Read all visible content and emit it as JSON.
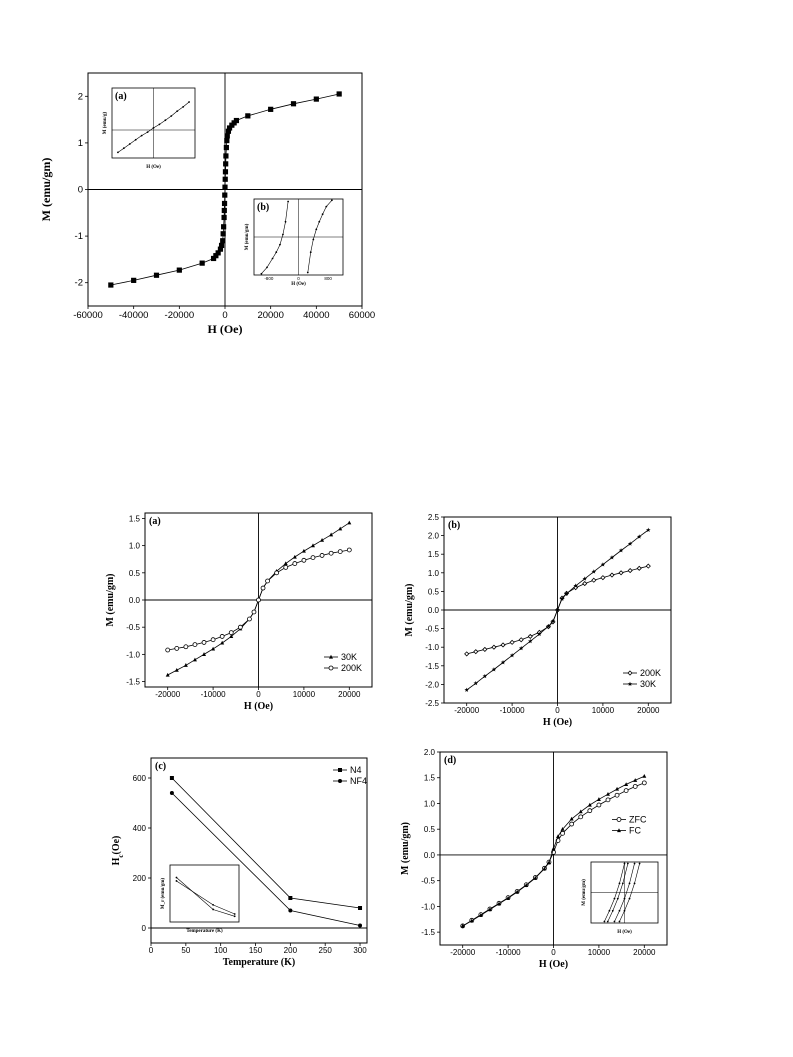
{
  "chart_data": [
    {
      "id": "top",
      "type": "line",
      "xlabel": "H (Oe)",
      "ylabel": "M (emu/gm)",
      "xlim": [
        -60000,
        60000
      ],
      "ylim": [
        -2.5,
        2.5
      ],
      "xticks": [
        -60000,
        -40000,
        -20000,
        0,
        20000,
        40000,
        60000
      ],
      "yticks": [
        -2,
        -1,
        0,
        1,
        2
      ],
      "xtick_labels": [
        "-60000",
        "-40000",
        "-20000",
        "0",
        "20000",
        "40000",
        "60000"
      ],
      "ytick_labels": [
        "-2",
        "-1",
        "0",
        "1",
        "2"
      ],
      "series": [
        {
          "marker": "square",
          "x": [
            -50000,
            -40000,
            -30000,
            -20000,
            -10000,
            -5000,
            -4000,
            -3000,
            -2000,
            -1500,
            -1000,
            -800,
            -600,
            -400,
            -300,
            -200,
            -100,
            0,
            100,
            200,
            300,
            400,
            600,
            800,
            1000,
            1500,
            2000,
            3000,
            4000,
            5000,
            10000,
            20000,
            30000,
            40000,
            50000
          ],
          "y": [
            -2.05,
            -1.95,
            -1.84,
            -1.73,
            -1.58,
            -1.48,
            -1.42,
            -1.36,
            -1.28,
            -1.2,
            -1.1,
            -0.95,
            -0.8,
            -0.6,
            -0.45,
            -0.3,
            -0.12,
            0.05,
            0.22,
            0.38,
            0.55,
            0.72,
            0.9,
            1.05,
            1.15,
            1.25,
            1.32,
            1.38,
            1.43,
            1.48,
            1.58,
            1.72,
            1.84,
            1.94,
            2.05
          ]
        }
      ],
      "insets": [
        {
          "id": "a",
          "label": "(a)",
          "xlabel": "H (Oe)",
          "ylabel": "M (emu/g)",
          "xlim": [
            -7000,
            7000
          ],
          "ylim": [
            -4,
            6
          ],
          "series": [
            {
              "x": [
                -6000,
                -5000,
                -4000,
                -3000,
                -2000,
                -1000,
                0,
                1000,
                2000,
                3000,
                4000,
                5000,
                6000
              ],
              "y": [
                -3.2,
                -2.6,
                -2.0,
                -1.4,
                -0.8,
                -0.3,
                0.3,
                0.8,
                1.4,
                2.0,
                2.7,
                3.3,
                4.0
              ]
            }
          ]
        },
        {
          "id": "b",
          "label": "(b)",
          "xlabel": "H (Oe)",
          "ylabel": "M (emu/gm)",
          "xtick_labels": [
            "-800",
            "0",
            "800"
          ],
          "xlim": [
            -1200,
            1200
          ],
          "ylim": [
            -1.5,
            1.5
          ],
          "series": [
            {
              "x": [
                -1000,
                -850,
                -700,
                -600,
                -500,
                -420,
                -350,
                -280
              ],
              "y": [
                -1.45,
                -1.2,
                -0.85,
                -0.6,
                -0.3,
                0.1,
                0.6,
                1.4
              ]
            },
            {
              "x": [
                250,
                330,
                400,
                480,
                560,
                650,
                750,
                900
              ],
              "y": [
                -1.4,
                -0.6,
                -0.1,
                0.3,
                0.6,
                0.9,
                1.2,
                1.45
              ]
            }
          ]
        }
      ]
    },
    {
      "id": "a",
      "type": "line",
      "panel_label": "(a)",
      "xlabel": "H (Oe)",
      "ylabel": "M (emu/gm)",
      "xlim": [
        -25000,
        25000
      ],
      "ylim": [
        -1.6,
        1.6
      ],
      "xticks": [
        -20000,
        -10000,
        0,
        10000,
        20000
      ],
      "yticks": [
        -1.5,
        -1.0,
        -0.5,
        0.0,
        0.5,
        1.0,
        1.5
      ],
      "xtick_labels": [
        "-20000",
        "-10000",
        "0",
        "10000",
        "20000"
      ],
      "ytick_labels": [
        "-1.5",
        "-1.0",
        "-0.5",
        "0.0",
        "0.5",
        "1.0",
        "1.5"
      ],
      "legend_position": "bottom-right",
      "series": [
        {
          "name": "30K",
          "marker": "filled-triangle",
          "x": [
            -20000,
            -18000,
            -16000,
            -14000,
            -12000,
            -10000,
            -8000,
            -6000,
            -4000,
            -2000,
            -1000,
            0,
            1000,
            2000,
            4000,
            6000,
            8000,
            10000,
            12000,
            14000,
            16000,
            18000,
            20000
          ],
          "y": [
            -1.38,
            -1.29,
            -1.2,
            -1.1,
            -1.0,
            -0.9,
            -0.79,
            -0.67,
            -0.53,
            -0.35,
            -0.22,
            0.0,
            0.22,
            0.35,
            0.53,
            0.67,
            0.79,
            0.9,
            1.0,
            1.1,
            1.2,
            1.31,
            1.42
          ]
        },
        {
          "name": "200K",
          "marker": "open-circle",
          "x": [
            -20000,
            -18000,
            -16000,
            -14000,
            -12000,
            -10000,
            -8000,
            -6000,
            -4000,
            -2000,
            -1000,
            0,
            1000,
            2000,
            4000,
            6000,
            8000,
            10000,
            12000,
            14000,
            16000,
            18000,
            20000
          ],
          "y": [
            -0.92,
            -0.89,
            -0.86,
            -0.82,
            -0.78,
            -0.73,
            -0.67,
            -0.6,
            -0.5,
            -0.35,
            -0.22,
            0.0,
            0.22,
            0.35,
            0.5,
            0.6,
            0.67,
            0.73,
            0.78,
            0.82,
            0.86,
            0.89,
            0.92
          ]
        }
      ]
    },
    {
      "id": "b",
      "type": "line",
      "panel_label": "(b)",
      "xlabel": "H (Oe)",
      "ylabel": "M (emu/gm)",
      "xlim": [
        -25000,
        25000
      ],
      "ylim": [
        -2.5,
        2.5
      ],
      "xticks": [
        -20000,
        -10000,
        0,
        10000,
        20000
      ],
      "yticks": [
        -2.5,
        -2.0,
        -1.5,
        -1.0,
        -0.5,
        0.0,
        0.5,
        1.0,
        1.5,
        2.0,
        2.5
      ],
      "xtick_labels": [
        "-20000",
        "-10000",
        "0",
        "10000",
        "20000"
      ],
      "ytick_labels": [
        "-2.5",
        "-2.0",
        "-1.5",
        "-1.0",
        "-0.5",
        "0.0",
        "0.5",
        "1.0",
        "1.5",
        "2.0",
        "2.5"
      ],
      "legend_position": "bottom-right",
      "series": [
        {
          "name": "200K",
          "marker": "open-diamond",
          "x": [
            -20000,
            -18000,
            -16000,
            -14000,
            -12000,
            -10000,
            -8000,
            -6000,
            -4000,
            -2000,
            -1000,
            0,
            1000,
            2000,
            4000,
            6000,
            8000,
            10000,
            12000,
            14000,
            16000,
            18000,
            20000
          ],
          "y": [
            -1.18,
            -1.12,
            -1.06,
            -1.0,
            -0.94,
            -0.87,
            -0.8,
            -0.71,
            -0.6,
            -0.45,
            -0.32,
            0.0,
            0.32,
            0.45,
            0.6,
            0.71,
            0.8,
            0.87,
            0.94,
            1.0,
            1.06,
            1.12,
            1.18
          ]
        },
        {
          "name": "30K",
          "marker": "filled-star",
          "x": [
            -20000,
            -18000,
            -16000,
            -14000,
            -12000,
            -10000,
            -8000,
            -6000,
            -4000,
            -2000,
            -1000,
            0,
            1000,
            2000,
            4000,
            6000,
            8000,
            10000,
            12000,
            14000,
            16000,
            18000,
            20000
          ],
          "y": [
            -2.15,
            -1.97,
            -1.78,
            -1.6,
            -1.41,
            -1.22,
            -1.03,
            -0.84,
            -0.65,
            -0.44,
            -0.3,
            0.0,
            0.3,
            0.44,
            0.65,
            0.84,
            1.03,
            1.22,
            1.41,
            1.6,
            1.78,
            1.97,
            2.15
          ]
        }
      ]
    },
    {
      "id": "c",
      "type": "line",
      "panel_label": "(c)",
      "xlabel": "Temperature (K)",
      "ylabel": "H_c (Oe)",
      "xlim": [
        0,
        310
      ],
      "ylim": [
        -60,
        680
      ],
      "xticks": [
        0,
        50,
        100,
        150,
        200,
        250,
        300
      ],
      "yticks": [
        0,
        200,
        400,
        600
      ],
      "xtick_labels": [
        "0",
        "50",
        "100",
        "150",
        "200",
        "250",
        "300"
      ],
      "ytick_labels": [
        "0",
        "200",
        "400",
        "600"
      ],
      "legend_position": "top-right",
      "series": [
        {
          "name": "N4",
          "marker": "filled-square",
          "x": [
            30,
            200,
            300
          ],
          "y": [
            600,
            120,
            80
          ]
        },
        {
          "name": "NF4",
          "marker": "filled-circle",
          "x": [
            30,
            200,
            300
          ],
          "y": [
            540,
            70,
            10
          ]
        }
      ],
      "insets": [
        {
          "id": "c-inset",
          "xlabel": "Temperature (K)",
          "ylabel": "M_r (emu/gm)",
          "xlim": [
            0,
            320
          ],
          "ylim": [
            0,
            1
          ],
          "series": [
            {
              "x": [
                30,
                200,
                300
              ],
              "y": [
                0.78,
                0.22,
                0.1
              ]
            },
            {
              "x": [
                30,
                200,
                300
              ],
              "y": [
                0.72,
                0.3,
                0.14
              ]
            }
          ]
        }
      ]
    },
    {
      "id": "d",
      "type": "line",
      "panel_label": "(d)",
      "xlabel": "H (Oe)",
      "ylabel": "M (emu/gm)",
      "xlim": [
        -25000,
        25000
      ],
      "ylim": [
        -1.75,
        2.0
      ],
      "xticks": [
        -20000,
        -10000,
        0,
        10000,
        20000
      ],
      "yticks": [
        -1.5,
        -1.0,
        -0.5,
        0.0,
        0.5,
        1.0,
        1.5,
        2.0
      ],
      "xtick_labels": [
        "-20000",
        "-10000",
        "0",
        "10000",
        "20000"
      ],
      "ytick_labels": [
        "-1.5",
        "-1.0",
        "-0.5",
        "0.0",
        "0.5",
        "1.0",
        "1.5",
        "2.0"
      ],
      "legend_position": "right",
      "series": [
        {
          "name": "ZFC",
          "marker": "open-circle",
          "x": [
            -20000,
            -18000,
            -16000,
            -14000,
            -12000,
            -10000,
            -8000,
            -6000,
            -4000,
            -2000,
            -1000,
            0,
            1000,
            2000,
            4000,
            6000,
            8000,
            10000,
            12000,
            14000,
            16000,
            18000,
            20000
          ],
          "y": [
            -1.38,
            -1.27,
            -1.16,
            -1.05,
            -0.94,
            -0.83,
            -0.71,
            -0.58,
            -0.44,
            -0.26,
            -0.14,
            0.05,
            0.28,
            0.42,
            0.6,
            0.74,
            0.86,
            0.97,
            1.07,
            1.16,
            1.25,
            1.33,
            1.4
          ]
        },
        {
          "name": "FC",
          "marker": "filled-triangle",
          "x": [
            -20000,
            -18000,
            -16000,
            -14000,
            -12000,
            -10000,
            -8000,
            -6000,
            -4000,
            -2000,
            -1000,
            0,
            1000,
            2000,
            4000,
            6000,
            8000,
            10000,
            12000,
            14000,
            16000,
            18000,
            20000
          ],
          "y": [
            -1.38,
            -1.28,
            -1.17,
            -1.06,
            -0.95,
            -0.84,
            -0.72,
            -0.59,
            -0.45,
            -0.27,
            -0.15,
            0.12,
            0.36,
            0.5,
            0.7,
            0.84,
            0.97,
            1.08,
            1.18,
            1.28,
            1.37,
            1.45,
            1.53
          ]
        }
      ],
      "insets": [
        {
          "id": "d-inset",
          "xlabel": "H (Oe)",
          "ylabel": "M (emu/gm)",
          "xlim": [
            -1000,
            1000
          ],
          "ylim": [
            -1,
            1
          ],
          "series": [
            {
              "x": [
                -600,
                -450,
                -300,
                -150,
                0
              ],
              "y": [
                -0.95,
                -0.6,
                -0.2,
                0.3,
                0.95
              ]
            },
            {
              "x": [
                -500,
                -350,
                -200,
                -50,
                100
              ],
              "y": [
                -0.95,
                -0.6,
                -0.2,
                0.3,
                0.95
              ]
            },
            {
              "x": [
                -300,
                -150,
                0,
                150,
                300
              ],
              "y": [
                -0.95,
                -0.6,
                -0.2,
                0.3,
                0.95
              ]
            },
            {
              "x": [
                -150,
                0,
                150,
                300,
                450
              ],
              "y": [
                -0.95,
                -0.6,
                -0.2,
                0.3,
                0.95
              ]
            }
          ]
        }
      ]
    }
  ]
}
